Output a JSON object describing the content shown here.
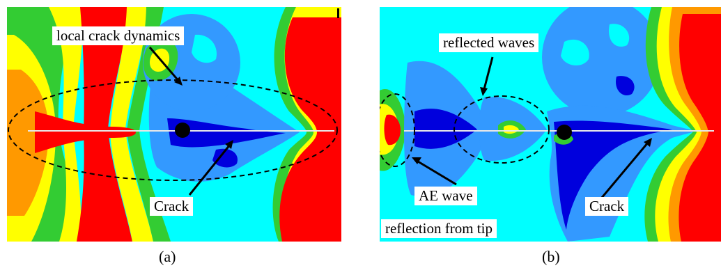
{
  "panels": {
    "a": {
      "caption": "(a)",
      "labels": {
        "local_crack_dynamics": "local crack dynamics",
        "crack": "Crack"
      }
    },
    "b": {
      "caption": "(b)",
      "labels": {
        "reflected_waves": "reflected waves",
        "ae_wave": "AE wave",
        "reflection_from_tip": "reflection from tip",
        "crack": "Crack"
      }
    }
  },
  "colors": {
    "red": "#ff0000",
    "orange": "#ff9900",
    "yellow": "#ffff00",
    "green": "#33cc33",
    "cyan": "#00ffff",
    "light_blue": "#3399ff",
    "blue": "#0000dd"
  }
}
